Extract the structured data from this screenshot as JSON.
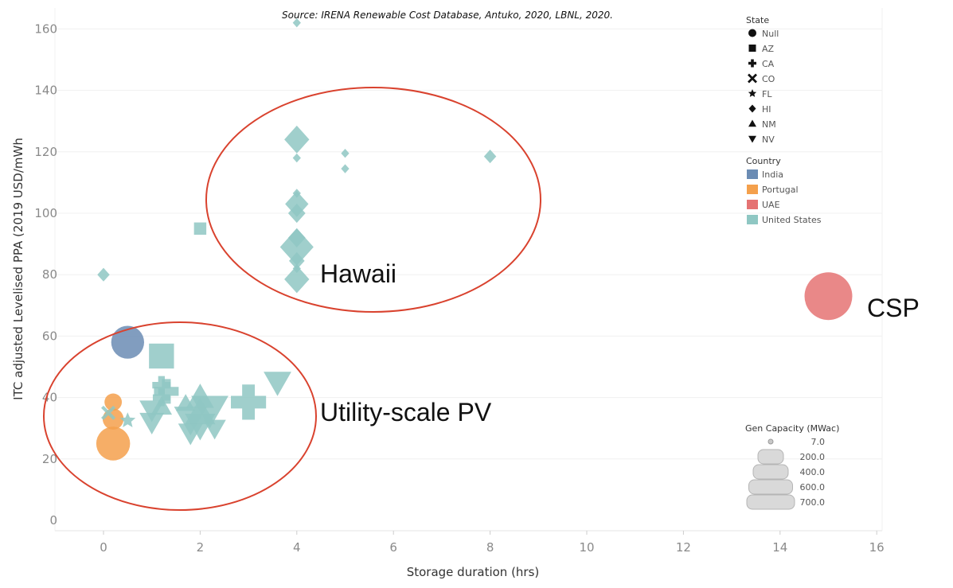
{
  "chart_data": {
    "type": "scatter",
    "source": "Source: IRENA Renewable Cost Database, Antuko, 2020, LBNL, 2020.",
    "xlabel": "Storage duration (hrs)",
    "ylabel": "ITC adjusted Levelised PPA (2019 USD/mWh",
    "xlim": [
      -1,
      16.2
    ],
    "ylim": [
      -3,
      165
    ],
    "x_ticks": [
      "0",
      "2",
      "4",
      "6",
      "8",
      "10",
      "12",
      "14",
      "16"
    ],
    "y_ticks": [
      "0",
      "20",
      "40",
      "60",
      "80",
      "100",
      "120",
      "140",
      "160"
    ],
    "grid": true,
    "legend_state": {
      "title": "State",
      "items": [
        {
          "label": "Null",
          "shape": "circle"
        },
        {
          "label": "AZ",
          "shape": "square"
        },
        {
          "label": "CA",
          "shape": "plus"
        },
        {
          "label": "CO",
          "shape": "cross"
        },
        {
          "label": "FL",
          "shape": "star"
        },
        {
          "label": "HI",
          "shape": "diamond"
        },
        {
          "label": "NM",
          "shape": "triangle-up"
        },
        {
          "label": "NV",
          "shape": "triangle-down"
        }
      ]
    },
    "legend_country": {
      "title": "Country",
      "items": [
        {
          "label": "India",
          "color": "#6b8cb4"
        },
        {
          "label": "Portugal",
          "color": "#f4a04c"
        },
        {
          "label": "UAE",
          "color": "#e57373"
        },
        {
          "label": "United States",
          "color": "#8fc7c3"
        }
      ]
    },
    "legend_size": {
      "title": "Gen Capacity (MWac)",
      "items": [
        "7.0",
        "200.0",
        "400.0",
        "600.0",
        "700.0"
      ]
    },
    "annotations": [
      "Hawaii",
      "Utility-scale PV",
      "CSP"
    ],
    "points": [
      {
        "x": 4,
        "y": 162,
        "shape": "diamond",
        "country": "United States",
        "cap": 7
      },
      {
        "x": 4,
        "y": 124,
        "shape": "diamond",
        "country": "United States",
        "cap": 200
      },
      {
        "x": 4,
        "y": 118,
        "shape": "diamond",
        "country": "United States",
        "cap": 7
      },
      {
        "x": 5,
        "y": 119.5,
        "shape": "diamond",
        "country": "United States",
        "cap": 7
      },
      {
        "x": 5,
        "y": 114.5,
        "shape": "diamond",
        "country": "United States",
        "cap": 7
      },
      {
        "x": 8,
        "y": 118.5,
        "shape": "diamond",
        "country": "United States",
        "cap": 30
      },
      {
        "x": 4,
        "y": 106.5,
        "shape": "diamond",
        "country": "United States",
        "cap": 7
      },
      {
        "x": 4,
        "y": 103,
        "shape": "diamond",
        "country": "United States",
        "cap": 170
      },
      {
        "x": 4,
        "y": 100,
        "shape": "diamond",
        "country": "United States",
        "cap": 80
      },
      {
        "x": 4,
        "y": 92,
        "shape": "diamond",
        "country": "United States",
        "cap": 80
      },
      {
        "x": 4,
        "y": 89,
        "shape": "diamond",
        "country": "United States",
        "cap": 400
      },
      {
        "x": 4,
        "y": 84.5,
        "shape": "diamond",
        "country": "United States",
        "cap": 60
      },
      {
        "x": 4,
        "y": 82,
        "shape": "diamond",
        "country": "United States",
        "cap": 7
      },
      {
        "x": 4,
        "y": 78.5,
        "shape": "diamond",
        "country": "United States",
        "cap": 200
      },
      {
        "x": 0,
        "y": 80,
        "shape": "diamond",
        "country": "United States",
        "cap": 30
      },
      {
        "x": 2,
        "y": 95,
        "shape": "square",
        "country": "United States",
        "cap": 30
      },
      {
        "x": 15,
        "y": 73,
        "shape": "circle",
        "country": "UAE",
        "cap": 700
      },
      {
        "x": 0.5,
        "y": 58,
        "shape": "circle",
        "country": "India",
        "cap": 300
      },
      {
        "x": 1.2,
        "y": 53.5,
        "shape": "square",
        "country": "United States",
        "cap": 200
      },
      {
        "x": 0.2,
        "y": 38.5,
        "shape": "circle",
        "country": "Portugal",
        "cap": 60
      },
      {
        "x": 0.2,
        "y": 33,
        "shape": "circle",
        "country": "Portugal",
        "cap": 100
      },
      {
        "x": 0.2,
        "y": 25,
        "shape": "circle",
        "country": "Portugal",
        "cap": 320
      },
      {
        "x": 0.1,
        "y": 35,
        "shape": "cross",
        "country": "United States",
        "cap": 20
      },
      {
        "x": 0.5,
        "y": 32.5,
        "shape": "star",
        "country": "United States",
        "cap": 40
      },
      {
        "x": 1.2,
        "y": 44,
        "shape": "plus",
        "country": "United States",
        "cap": 70
      },
      {
        "x": 1.3,
        "y": 42,
        "shape": "plus",
        "country": "United States",
        "cap": 150
      },
      {
        "x": 1.2,
        "y": 40,
        "shape": "plus",
        "country": "United States",
        "cap": 60
      },
      {
        "x": 1.0,
        "y": 36,
        "shape": "triangle-down",
        "country": "United States",
        "cap": 150
      },
      {
        "x": 1.0,
        "y": 32,
        "shape": "triangle-down",
        "country": "United States",
        "cap": 150
      },
      {
        "x": 1.2,
        "y": 37,
        "shape": "triangle-up",
        "country": "United States",
        "cap": 100
      },
      {
        "x": 1.7,
        "y": 38,
        "shape": "triangle-up",
        "country": "United States",
        "cap": 80
      },
      {
        "x": 2.0,
        "y": 40,
        "shape": "triangle-up",
        "country": "United States",
        "cap": 200
      },
      {
        "x": 2.0,
        "y": 35,
        "shape": "triangle-up",
        "country": "United States",
        "cap": 250
      },
      {
        "x": 1.8,
        "y": 33,
        "shape": "triangle-down",
        "country": "United States",
        "cap": 300
      },
      {
        "x": 2.2,
        "y": 36,
        "shape": "triangle-down",
        "country": "United States",
        "cap": 400
      },
      {
        "x": 2.0,
        "y": 31,
        "shape": "triangle-down",
        "country": "United States",
        "cap": 250
      },
      {
        "x": 1.8,
        "y": 28.5,
        "shape": "triangle-down",
        "country": "United States",
        "cap": 150
      },
      {
        "x": 2.3,
        "y": 30,
        "shape": "triangle-down",
        "country": "United States",
        "cap": 120
      },
      {
        "x": 3.0,
        "y": 38.5,
        "shape": "plus",
        "country": "United States",
        "cap": 350
      },
      {
        "x": 3.6,
        "y": 45,
        "shape": "triangle-down",
        "country": "United States",
        "cap": 200
      }
    ]
  }
}
